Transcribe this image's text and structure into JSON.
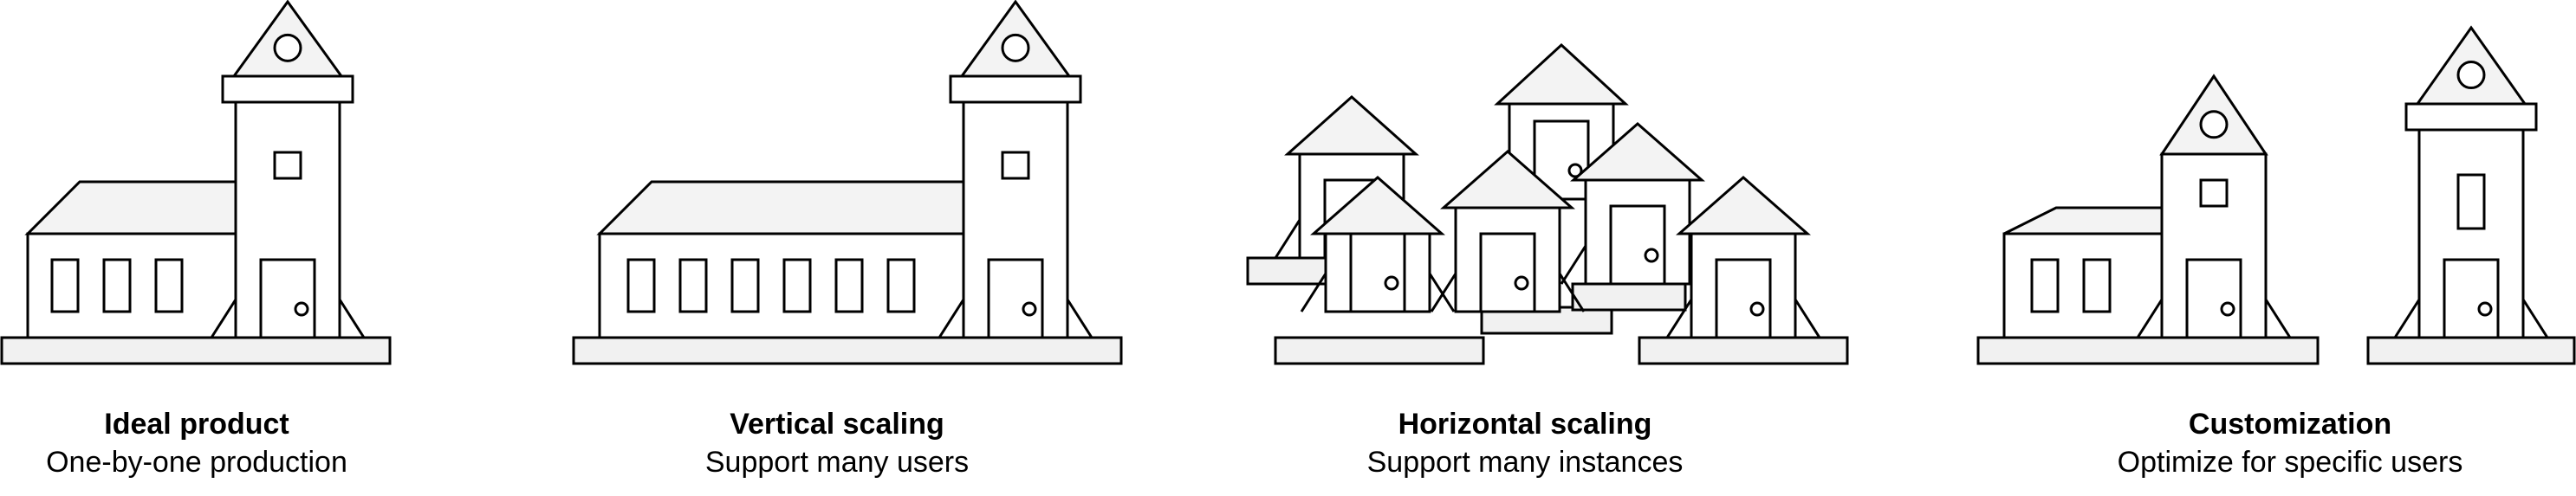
{
  "colors": {
    "stroke": "#000000",
    "fill_white": "#ffffff",
    "fill_light": "#f3f3f3",
    "fill_base": "#f1f1f1"
  },
  "panels": [
    {
      "title": "Ideal product",
      "subtitle": "One-by-one production"
    },
    {
      "title": "Vertical scaling",
      "subtitle": "Support many users"
    },
    {
      "title": "Horizontal scaling",
      "subtitle": "Support many instances"
    },
    {
      "title": "Customization",
      "subtitle": "Optimize for specific users"
    }
  ]
}
